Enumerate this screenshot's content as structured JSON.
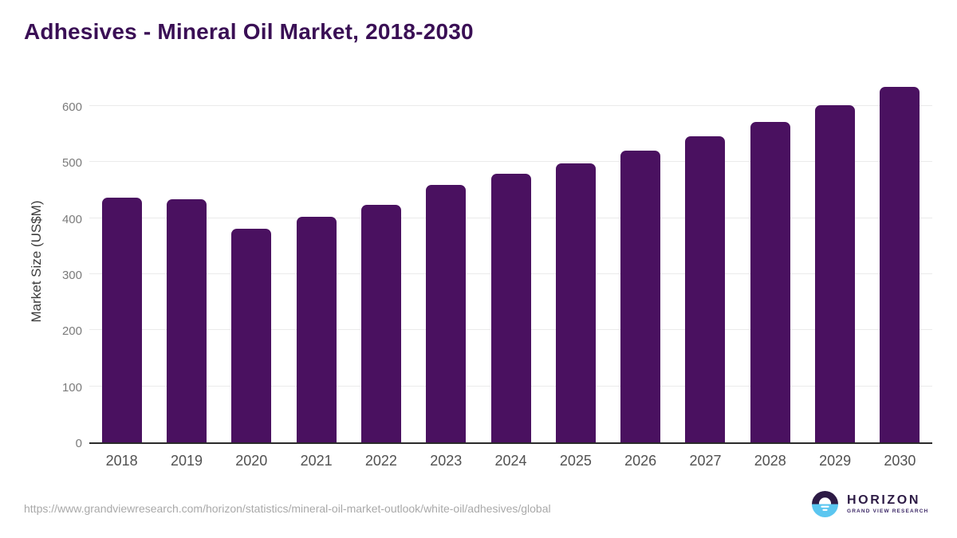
{
  "title": "Adhesives - Mineral Oil Market, 2018-2030",
  "source_url": "https://www.grandviewresearch.com/horizon/statistics/mineral-oil-market-outlook/white-oil/adhesives/global",
  "logo": {
    "wordmark": "HORIZON",
    "subtitle": "GRAND VIEW RESEARCH",
    "icon": "horizon-sun-over-water-icon"
  },
  "colors": {
    "bar": "#4a1160",
    "title": "#3a0f55",
    "logo_dark": "#2d1b45",
    "logo_blue": "#5bc6f0",
    "gridline": "#ebebeb",
    "axis_line": "#2b2b2b",
    "y_tick_text": "#7b7b7b",
    "x_tick_text": "#515151",
    "url_text": "#a9a9a9"
  },
  "chart_data": {
    "type": "bar",
    "title": "Adhesives - Mineral Oil Market, 2018-2030",
    "categories": [
      "2018",
      "2019",
      "2020",
      "2021",
      "2022",
      "2023",
      "2024",
      "2025",
      "2026",
      "2027",
      "2028",
      "2029",
      "2030"
    ],
    "values": [
      436,
      434,
      381,
      402,
      424,
      459,
      479,
      498,
      521,
      546,
      572,
      602,
      634
    ],
    "xlabel": "",
    "ylabel": "Market Size (US$M)",
    "ylim": [
      0,
      650
    ],
    "yticks": [
      0,
      100,
      200,
      300,
      400,
      500,
      600
    ],
    "grid": "horizontal",
    "legend": "none",
    "bar_color": "#4a1160"
  }
}
